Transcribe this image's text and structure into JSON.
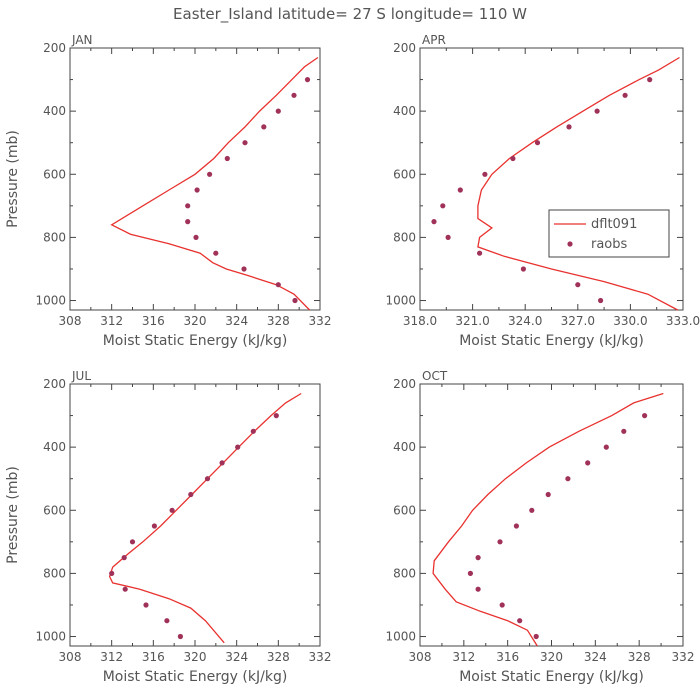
{
  "figure_title": "Easter_Island   latitude= 27 S longitude= 110 W",
  "colors": {
    "model": "#e8322f",
    "obs": "#a0325a",
    "axis": "#444444",
    "text": "#555555"
  },
  "chart_data": [
    {
      "type": "line",
      "panel": "JAN",
      "xlabel": "Moist Static Energy (kJ/kg)",
      "ylabel": "Pressure (mb)",
      "xlim": [
        308,
        332
      ],
      "ylim": [
        1030,
        200
      ],
      "y_reversed": true,
      "xticks": [
        308,
        312,
        316,
        320,
        324,
        328,
        332
      ],
      "xtick_labels": [
        "308",
        "312",
        "316",
        "320",
        "324",
        "328",
        "332"
      ],
      "yticks": [
        200,
        400,
        600,
        800,
        1000
      ],
      "ytick_labels": [
        "200",
        "400",
        "600",
        "800",
        "1000"
      ],
      "series": [
        {
          "name": "dflt091",
          "style": "line",
          "points": [
            [
              331.8,
              230
            ],
            [
              330.5,
              260
            ],
            [
              329.3,
              300
            ],
            [
              327.8,
              350
            ],
            [
              326.2,
              400
            ],
            [
              324.8,
              450
            ],
            [
              323.2,
              500
            ],
            [
              321.8,
              550
            ],
            [
              320.0,
              600
            ],
            [
              317.5,
              650
            ],
            [
              315.0,
              700
            ],
            [
              312.0,
              760
            ],
            [
              313.8,
              790
            ],
            [
              317.5,
              820
            ],
            [
              320.5,
              850
            ],
            [
              321.7,
              880
            ],
            [
              323.0,
              900
            ],
            [
              325.0,
              920
            ],
            [
              327.8,
              950
            ],
            [
              329.5,
              980
            ],
            [
              331.0,
              1030
            ]
          ]
        },
        {
          "name": "raobs",
          "style": "markers",
          "points": [
            [
              330.8,
              300
            ],
            [
              329.5,
              350
            ],
            [
              328.0,
              400
            ],
            [
              326.6,
              450
            ],
            [
              324.8,
              500
            ],
            [
              323.1,
              550
            ],
            [
              321.4,
              600
            ],
            [
              320.2,
              650
            ],
            [
              319.3,
              700
            ],
            [
              319.3,
              750
            ],
            [
              320.1,
              800
            ],
            [
              322.0,
              850
            ],
            [
              324.7,
              900
            ],
            [
              328.0,
              950
            ],
            [
              329.6,
              1000
            ]
          ]
        }
      ]
    },
    {
      "type": "line",
      "panel": "APR",
      "xlabel": "Moist Static Energy (kJ/kg)",
      "ylabel": "",
      "xlim": [
        318,
        333
      ],
      "ylim": [
        1030,
        200
      ],
      "y_reversed": true,
      "xticks": [
        318,
        321,
        324,
        327,
        330,
        333
      ],
      "xtick_labels": [
        "318.0",
        "321.0",
        "324.0",
        "327.0",
        "330.0",
        "333.0"
      ],
      "yticks": [
        200,
        400,
        600,
        800,
        1000
      ],
      "ytick_labels": [
        "200",
        "400",
        "600",
        "800",
        "1000"
      ],
      "legend": {
        "position": "right-middle",
        "entries": [
          "dflt091",
          "raobs"
        ]
      },
      "series": [
        {
          "name": "dflt091",
          "style": "line",
          "points": [
            [
              332.8,
              230
            ],
            [
              331.6,
              270
            ],
            [
              330.5,
              300
            ],
            [
              328.8,
              350
            ],
            [
              327.3,
              400
            ],
            [
              325.8,
              450
            ],
            [
              324.4,
              500
            ],
            [
              323.1,
              550
            ],
            [
              322.1,
              600
            ],
            [
              321.5,
              650
            ],
            [
              321.3,
              700
            ],
            [
              321.3,
              740
            ],
            [
              322.1,
              770
            ],
            [
              321.4,
              800
            ],
            [
              321.3,
              830
            ],
            [
              322.8,
              860
            ],
            [
              325.5,
              900
            ],
            [
              328.5,
              940
            ],
            [
              331.0,
              980
            ],
            [
              332.7,
              1030
            ]
          ]
        },
        {
          "name": "raobs",
          "style": "markers",
          "points": [
            [
              331.1,
              300
            ],
            [
              329.7,
              350
            ],
            [
              328.1,
              400
            ],
            [
              326.5,
              450
            ],
            [
              324.7,
              500
            ],
            [
              323.3,
              550
            ],
            [
              321.7,
              600
            ],
            [
              320.3,
              650
            ],
            [
              319.3,
              700
            ],
            [
              318.8,
              750
            ],
            [
              319.6,
              800
            ],
            [
              321.4,
              850
            ],
            [
              323.9,
              900
            ],
            [
              327.0,
              950
            ],
            [
              328.3,
              1000
            ]
          ]
        }
      ]
    },
    {
      "type": "line",
      "panel": "JUL",
      "xlabel": "Moist Static Energy (kJ/kg)",
      "ylabel": "Pressure (mb)",
      "xlim": [
        308,
        332
      ],
      "ylim": [
        1030,
        200
      ],
      "y_reversed": true,
      "xticks": [
        308,
        312,
        316,
        320,
        324,
        328,
        332
      ],
      "xtick_labels": [
        "308",
        "312",
        "316",
        "320",
        "324",
        "328",
        "332"
      ],
      "yticks": [
        200,
        400,
        600,
        800,
        1000
      ],
      "ytick_labels": [
        "200",
        "400",
        "600",
        "800",
        "1000"
      ],
      "series": [
        {
          "name": "dflt091",
          "style": "line",
          "points": [
            [
              330.2,
              230
            ],
            [
              328.7,
              260
            ],
            [
              327.3,
              300
            ],
            [
              325.7,
              350
            ],
            [
              324.2,
              400
            ],
            [
              322.7,
              450
            ],
            [
              321.2,
              500
            ],
            [
              319.7,
              550
            ],
            [
              318.2,
              600
            ],
            [
              316.7,
              650
            ],
            [
              315.0,
              700
            ],
            [
              313.5,
              740
            ],
            [
              312.1,
              780
            ],
            [
              311.8,
              810
            ],
            [
              312.1,
              830
            ],
            [
              314.7,
              850
            ],
            [
              317.5,
              880
            ],
            [
              319.6,
              910
            ],
            [
              321.0,
              950
            ],
            [
              322.8,
              1020
            ]
          ]
        },
        {
          "name": "raobs",
          "style": "markers",
          "points": [
            [
              327.8,
              300
            ],
            [
              325.6,
              350
            ],
            [
              324.1,
              400
            ],
            [
              322.6,
              450
            ],
            [
              321.2,
              500
            ],
            [
              319.6,
              550
            ],
            [
              317.8,
              600
            ],
            [
              316.1,
              650
            ],
            [
              314.0,
              700
            ],
            [
              313.2,
              750
            ],
            [
              312.0,
              800
            ],
            [
              313.3,
              850
            ],
            [
              315.3,
              900
            ],
            [
              317.3,
              950
            ],
            [
              318.6,
              1000
            ]
          ]
        }
      ]
    },
    {
      "type": "line",
      "panel": "OCT",
      "xlabel": "Moist Static Energy (kJ/kg)",
      "ylabel": "",
      "xlim": [
        308,
        332
      ],
      "ylim": [
        1030,
        200
      ],
      "y_reversed": true,
      "xticks": [
        308,
        312,
        316,
        320,
        324,
        328,
        332
      ],
      "xtick_labels": [
        "308",
        "312",
        "316",
        "320",
        "324",
        "328",
        "332"
      ],
      "yticks": [
        200,
        400,
        600,
        800,
        1000
      ],
      "ytick_labels": [
        "200",
        "400",
        "600",
        "800",
        "1000"
      ],
      "series": [
        {
          "name": "dflt091",
          "style": "line",
          "points": [
            [
              330.2,
              230
            ],
            [
              327.5,
              260
            ],
            [
              325.5,
              300
            ],
            [
              322.5,
              350
            ],
            [
              319.8,
              400
            ],
            [
              317.7,
              450
            ],
            [
              315.8,
              500
            ],
            [
              314.2,
              550
            ],
            [
              312.8,
              600
            ],
            [
              311.8,
              650
            ],
            [
              310.6,
              700
            ],
            [
              309.3,
              760
            ],
            [
              309.2,
              800
            ],
            [
              310.3,
              850
            ],
            [
              311.3,
              890
            ],
            [
              313.5,
              920
            ],
            [
              316.0,
              950
            ],
            [
              317.8,
              980
            ],
            [
              318.7,
              1030
            ]
          ]
        },
        {
          "name": "raobs",
          "style": "markers",
          "points": [
            [
              328.5,
              300
            ],
            [
              326.6,
              350
            ],
            [
              325.0,
              400
            ],
            [
              323.3,
              450
            ],
            [
              321.5,
              500
            ],
            [
              319.7,
              550
            ],
            [
              318.2,
              600
            ],
            [
              316.8,
              650
            ],
            [
              315.3,
              700
            ],
            [
              313.3,
              750
            ],
            [
              312.6,
              800
            ],
            [
              313.3,
              850
            ],
            [
              315.5,
              900
            ],
            [
              317.1,
              950
            ],
            [
              318.6,
              1000
            ]
          ]
        }
      ]
    }
  ]
}
